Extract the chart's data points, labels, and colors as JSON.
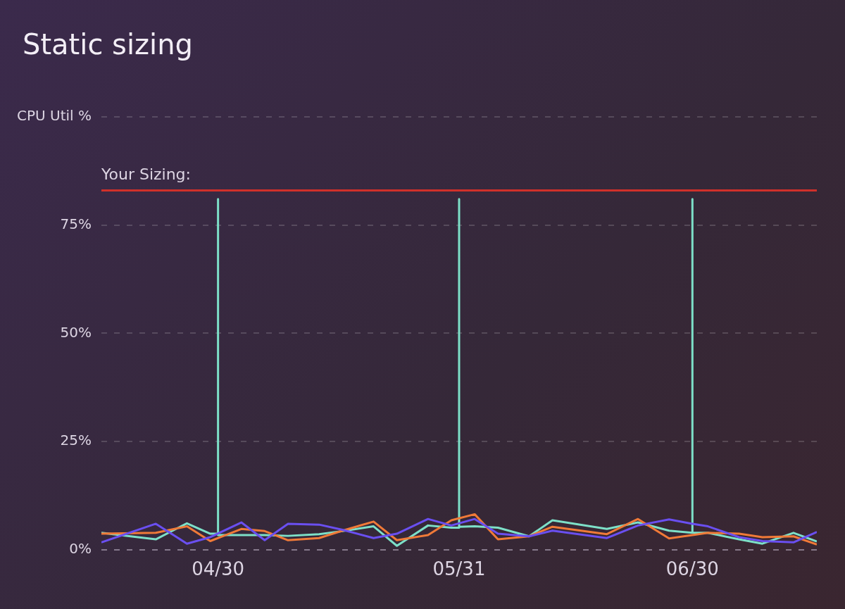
{
  "chart_data": {
    "type": "line",
    "title": "Static sizing",
    "x": [
      "--04-15",
      "--04-22",
      "--04-26",
      "--04-29",
      "--05-03",
      "--05-06",
      "--05-09",
      "--05-13",
      "--05-16",
      "--05-20",
      "--05-23",
      "--05-27",
      "--05-30",
      "--06-02",
      "--06-05",
      "--06-09",
      "--06-12",
      "--06-19",
      "--06-23",
      "--06-27",
      "--06-30",
      "--07-02",
      "--07-06",
      "--07-09",
      "--07-13",
      "--07-16"
    ],
    "series": [
      {
        "color": "#6a4ff0",
        "values": [
          1.7,
          6.0,
          1.4,
          2.9,
          6.3,
          2.2,
          6.0,
          5.8,
          4.6,
          2.7,
          3.7,
          7.1,
          5.6,
          7.1,
          3.7,
          3.1,
          4.4,
          2.7,
          5.6,
          7.0,
          6.0,
          5.4,
          2.9,
          2.0,
          1.7,
          4.1
        ]
      },
      {
        "color": "#f07a38",
        "values": [
          3.7,
          3.9,
          5.4,
          2.0,
          4.8,
          4.3,
          2.2,
          2.7,
          4.4,
          6.5,
          2.2,
          3.4,
          6.8,
          8.2,
          2.4,
          3.1,
          5.3,
          3.6,
          7.1,
          2.6,
          3.4,
          3.9,
          3.7,
          2.9,
          3.1,
          1.2
        ]
      },
      {
        "color": "#7de0c8",
        "x": [
          "--04-15",
          "--04-22",
          "--04-26",
          "--04-29",
          "--04-30",
          "--04-30",
          "--04-30",
          "--05-03",
          "--05-06",
          "--05-09",
          "--05-13",
          "--05-16",
          "--05-20",
          "--05-23",
          "--05-27",
          "--05-30",
          "--05-31",
          "--05-31",
          "--05-31",
          "--06-02",
          "--06-05",
          "--06-09",
          "--06-12",
          "--06-19",
          "--06-23",
          "--06-27",
          "--06-30",
          "--06-30",
          "--06-30",
          "--07-02",
          "--07-06",
          "--07-09",
          "--07-13",
          "--07-16"
        ],
        "values": [
          3.9,
          2.4,
          6.1,
          3.7,
          3.7,
          81,
          3.4,
          3.4,
          3.4,
          3.2,
          3.6,
          4.3,
          5.4,
          0.9,
          5.6,
          5.1,
          5.1,
          81,
          5.3,
          5.4,
          5.1,
          3.1,
          6.8,
          4.8,
          6.3,
          4.4,
          3.9,
          81,
          3.9,
          3.9,
          2.4,
          1.4,
          3.9,
          1.9
        ]
      }
    ],
    "xlim": [
      "--04-15",
      "--07-16"
    ],
    "xticks": [
      {
        "value": "--04-30",
        "label": "04/30"
      },
      {
        "value": "--05-31",
        "label": "05/31"
      },
      {
        "value": "--06-30",
        "label": "06/30"
      }
    ],
    "ylim": [
      0,
      100
    ],
    "yticks": [
      {
        "value": 0,
        "label": "0%"
      },
      {
        "value": 25,
        "label": "25%"
      },
      {
        "value": 50,
        "label": "50%"
      },
      {
        "value": 75,
        "label": "75%"
      },
      {
        "value": 100,
        "label": "CPU Util %"
      }
    ],
    "ref_lines": [
      {
        "axis": "y",
        "value": 83,
        "label": "Your Sizing:",
        "color": "#d0302a"
      }
    ],
    "grid": "y",
    "legend": false,
    "marker": "none"
  }
}
